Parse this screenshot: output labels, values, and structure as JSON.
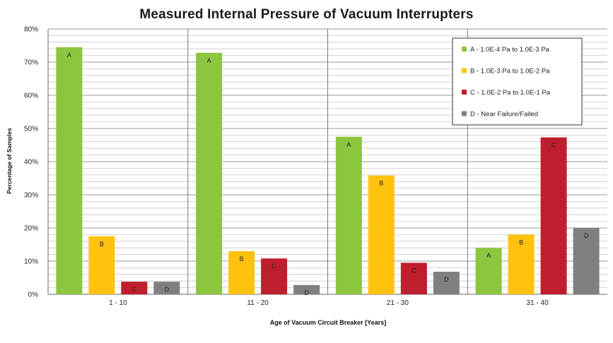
{
  "chart_data": {
    "type": "bar",
    "title": "Measured Internal Pressure of Vacuum Interrupters",
    "xlabel": "Age of Vacuum Circuit Breaker [Years]",
    "ylabel": "Percentage of Samples",
    "ylim": [
      0,
      80
    ],
    "yticks": [
      "0%",
      "10%",
      "20%",
      "30%",
      "40%",
      "50%",
      "60%",
      "70%",
      "80%"
    ],
    "categories": [
      "1 - 10",
      "11 - 20",
      "21 - 30",
      "31 - 40"
    ],
    "series": [
      {
        "name": "A - 1.0E-4 Pa to 1.0E-3 Pa",
        "key": "A",
        "color": "#8cc63f",
        "values": [
          74.5,
          72.8,
          47.5,
          14
        ]
      },
      {
        "name": "B - 1.0E-3 Pa to 1.0E-2 Pa",
        "key": "B",
        "color": "#ffc20e",
        "values": [
          17.5,
          13,
          35.8,
          18
        ]
      },
      {
        "name": "C - 1.0E-2 Pa to 1.0E-1 Pa",
        "key": "C",
        "color": "#be1e2d",
        "values": [
          3.8,
          10.8,
          9.5,
          47.3
        ]
      },
      {
        "name": "D - Near Failure/Failed",
        "key": "D",
        "color": "#808080",
        "values": [
          3.8,
          2.8,
          6.8,
          20
        ]
      }
    ],
    "grid": true,
    "legend_position": "top-right"
  }
}
